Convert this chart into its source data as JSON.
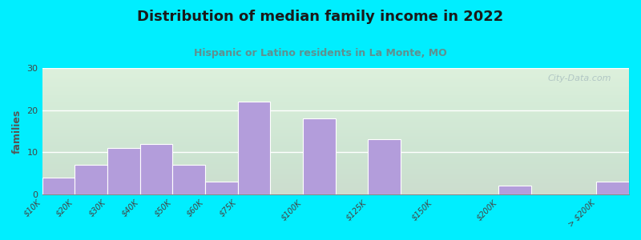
{
  "title": "Distribution of median family income in 2022",
  "subtitle": "Hispanic or Latino residents in La Monte, MO",
  "ylabel": "families",
  "categories": [
    "$10K",
    "$20K",
    "$30K",
    "$40K",
    "$50K",
    "$60K",
    "$75K",
    "$100K",
    "$125K",
    "$150K",
    "$200K",
    "> $200K"
  ],
  "values": [
    4,
    7,
    11,
    12,
    7,
    3,
    22,
    18,
    13,
    0,
    2,
    3
  ],
  "bar_color": "#b39ddb",
  "bar_edge_color": "#ffffff",
  "background_outer": "#00eeff",
  "background_plot": "#f0f8ee",
  "title_color": "#1a1a1a",
  "subtitle_color": "#5f9090",
  "ylabel_color": "#555555",
  "yticks": [
    0,
    10,
    20,
    30
  ],
  "ylim": [
    0,
    30
  ],
  "watermark": "City-Data.com",
  "watermark_color": "#aabfc0",
  "bar_widths": [
    1,
    1,
    1,
    1,
    1,
    1,
    1,
    1,
    1,
    1,
    1,
    1
  ],
  "bar_lefts": [
    0,
    1,
    2,
    3,
    4,
    5,
    6,
    8,
    10,
    12,
    14,
    17
  ]
}
